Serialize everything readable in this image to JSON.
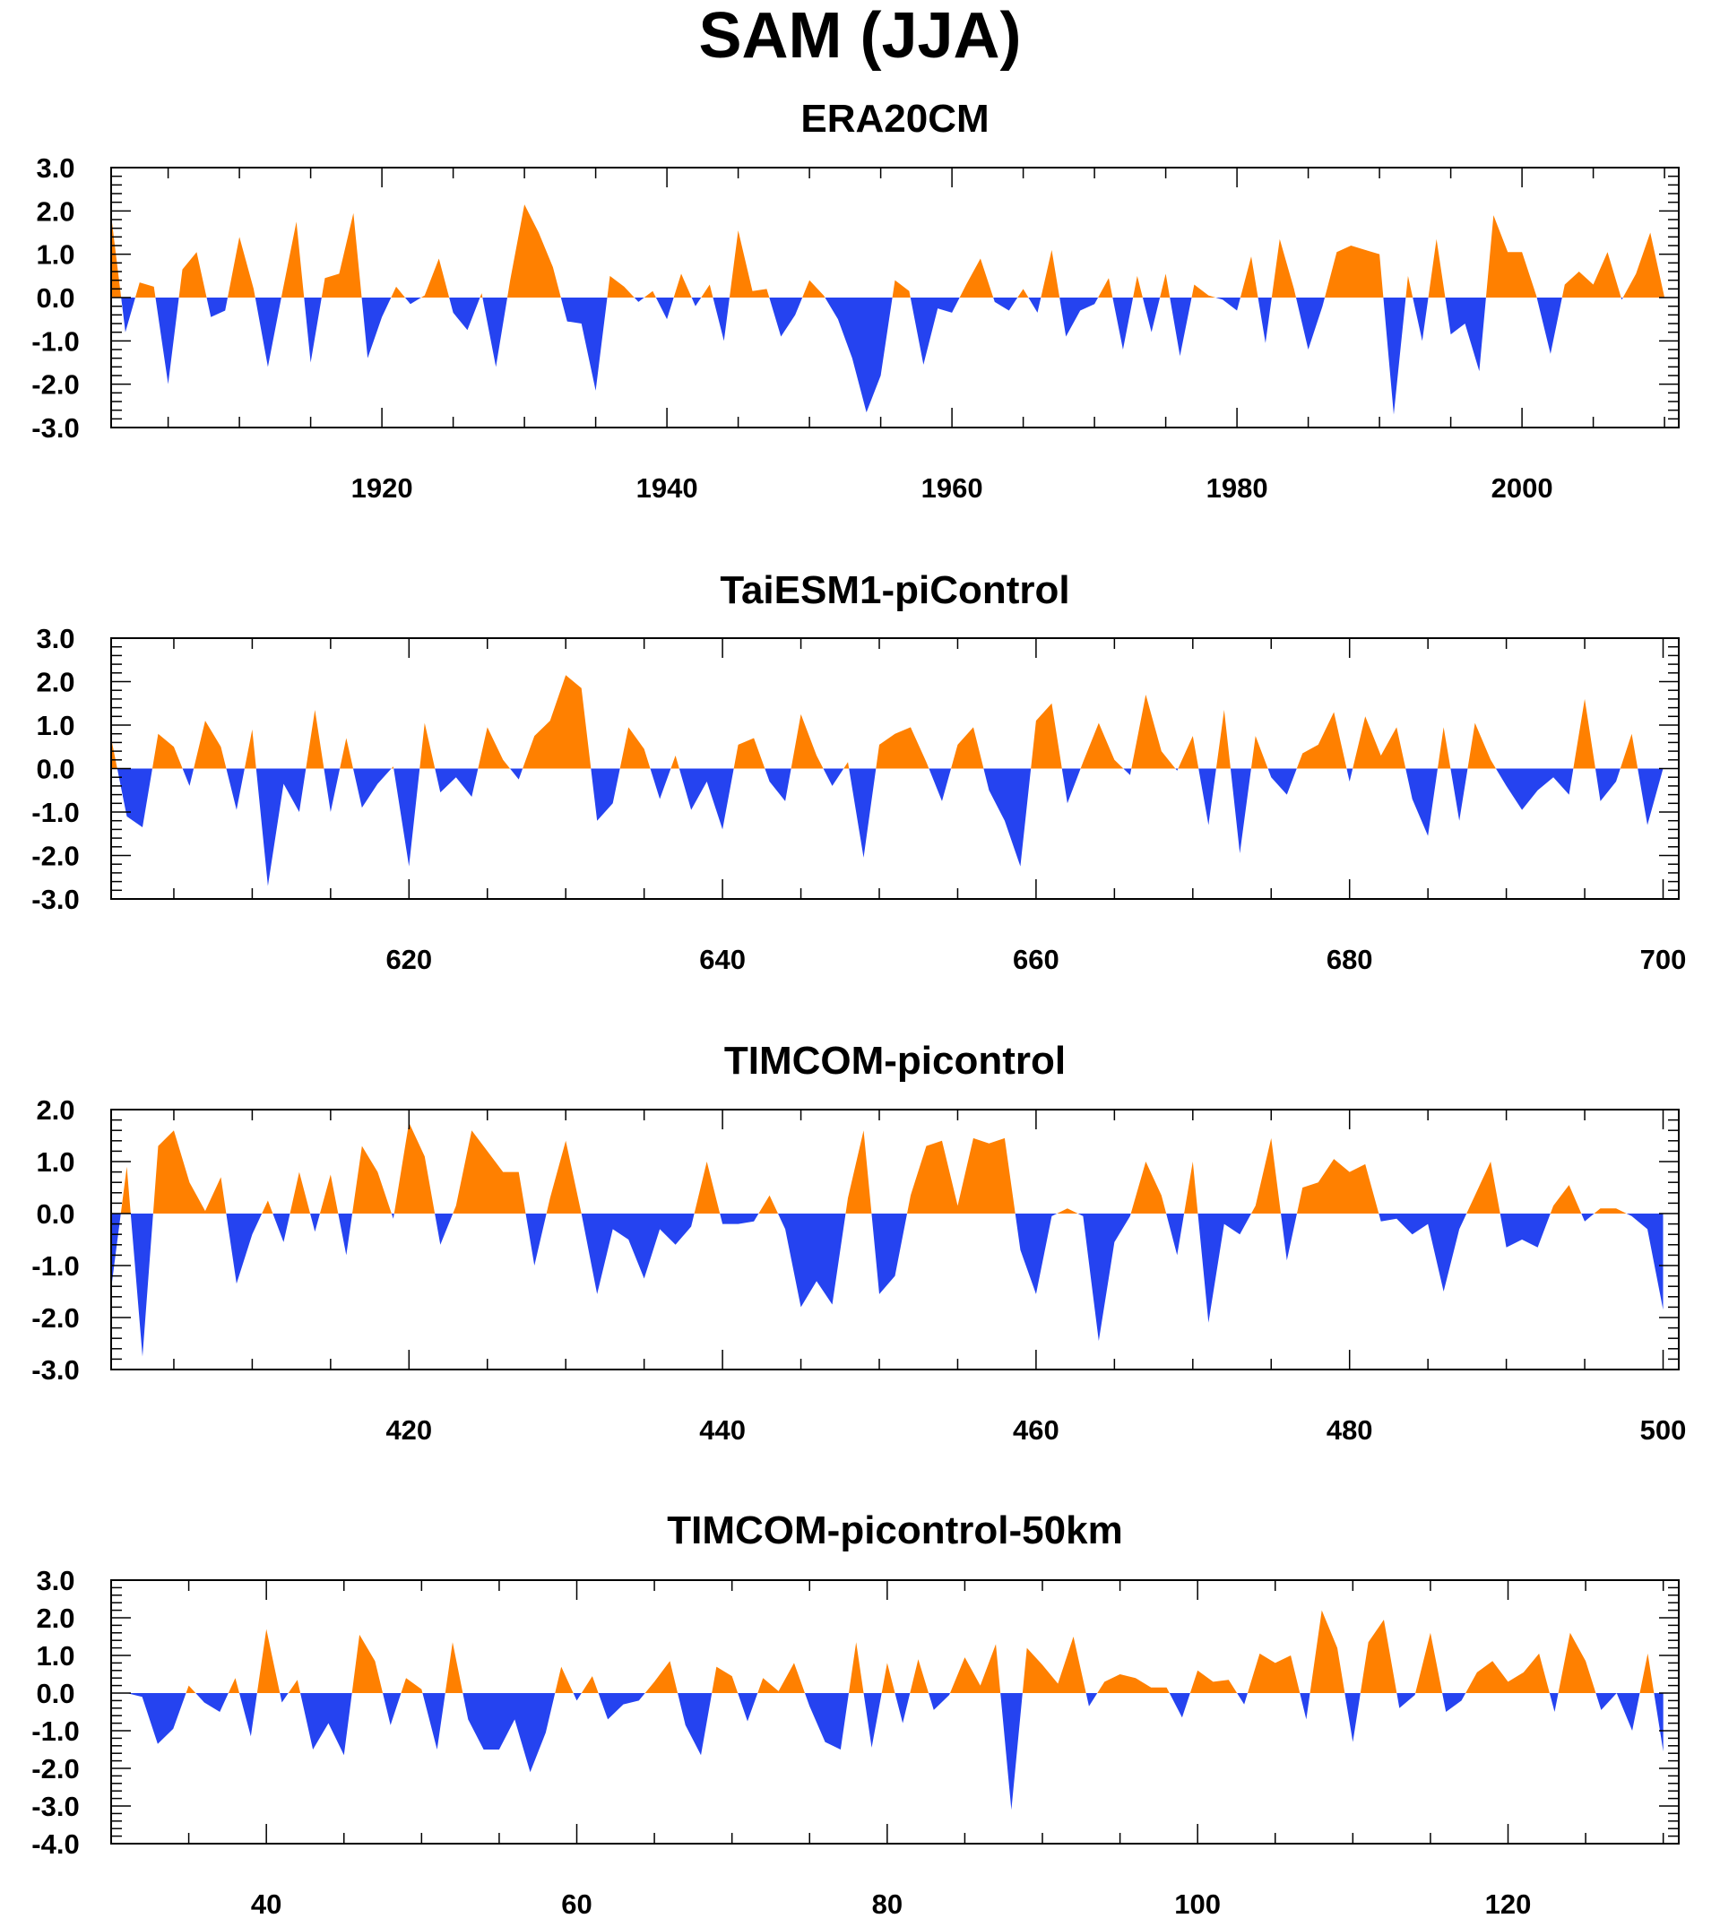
{
  "title": "SAM (JJA)",
  "colors": {
    "positive": "#FF8000",
    "negative": "#2543F0",
    "axis": "#000000"
  },
  "chart_data": [
    {
      "type": "area",
      "title": "ERA20CM",
      "xlim": [
        1901,
        2011
      ],
      "ylim": [
        -3.0,
        3.0
      ],
      "x_ticks": [
        1920,
        1940,
        1960,
        1980,
        2000
      ],
      "y_ticks": [
        "3.0",
        "2.0",
        "1.0",
        "0.0",
        "-1.0",
        "-2.0",
        "-3.0"
      ],
      "x": [
        1901,
        1902,
        1903,
        1904,
        1905,
        1906,
        1907,
        1908,
        1909,
        1910,
        1911,
        1912,
        1913,
        1914,
        1915,
        1916,
        1917,
        1918,
        1919,
        1920,
        1921,
        1922,
        1923,
        1924,
        1925,
        1926,
        1927,
        1928,
        1929,
        1930,
        1931,
        1932,
        1933,
        1934,
        1935,
        1936,
        1937,
        1938,
        1939,
        1940,
        1941,
        1942,
        1943,
        1944,
        1945,
        1946,
        1947,
        1948,
        1949,
        1950,
        1951,
        1952,
        1953,
        1954,
        1955,
        1956,
        1957,
        1958,
        1959,
        1960,
        1961,
        1962,
        1963,
        1964,
        1965,
        1966,
        1967,
        1968,
        1969,
        1970,
        1971,
        1972,
        1973,
        1974,
        1975,
        1976,
        1977,
        1978,
        1979,
        1980,
        1981,
        1982,
        1983,
        1984,
        1985,
        1986,
        1987,
        1988,
        1989,
        1990,
        1991,
        1992,
        1993,
        1994,
        1995,
        1996,
        1997,
        1998,
        1999,
        2000,
        2001,
        2002,
        2003,
        2004,
        2005,
        2006,
        2007,
        2008,
        2009,
        2010
      ],
      "values": [
        1.9,
        -0.8,
        0.35,
        0.25,
        -2.0,
        0.65,
        1.05,
        -0.45,
        -0.3,
        1.4,
        0.2,
        -1.6,
        0.1,
        1.75,
        -1.5,
        0.45,
        0.55,
        1.95,
        -1.4,
        -0.45,
        0.25,
        -0.15,
        0.05,
        0.9,
        -0.35,
        -0.75,
        0.1,
        -1.6,
        0.4,
        2.15,
        1.5,
        0.7,
        -0.55,
        -0.6,
        -2.15,
        0.5,
        0.25,
        -0.1,
        0.15,
        -0.5,
        0.55,
        -0.2,
        0.3,
        -1.0,
        1.55,
        0.15,
        0.2,
        -0.9,
        -0.4,
        0.4,
        0.05,
        -0.5,
        -1.4,
        -2.65,
        -1.8,
        0.4,
        0.15,
        -1.55,
        -0.25,
        -0.35,
        0.3,
        0.9,
        -0.1,
        -0.3,
        0.2,
        -0.35,
        1.1,
        -0.9,
        -0.3,
        -0.15,
        0.45,
        -1.2,
        0.5,
        -0.8,
        0.55,
        -1.35,
        0.3,
        0.05,
        -0.05,
        -0.3,
        0.95,
        -1.05,
        1.35,
        0.2,
        -1.2,
        -0.2,
        1.05,
        1.2,
        1.1,
        1.0,
        -2.7,
        0.5,
        -1.0,
        1.35,
        -0.85,
        -0.6,
        -1.7,
        1.9,
        1.05,
        1.05,
        0.05,
        -1.3,
        0.3,
        0.6,
        0.3,
        1.05,
        -0.05,
        0.55,
        1.5,
        0.0
      ]
    },
    {
      "type": "area",
      "title": "TaiESM1-piControl",
      "xlim": [
        601,
        701
      ],
      "ylim": [
        -3.0,
        3.0
      ],
      "x_ticks": [
        620,
        640,
        660,
        680,
        700
      ],
      "y_ticks": [
        "3.0",
        "2.0",
        "1.0",
        "0.0",
        "-1.0",
        "-2.0",
        "-3.0"
      ],
      "x": [
        601,
        602,
        603,
        604,
        605,
        606,
        607,
        608,
        609,
        610,
        611,
        612,
        613,
        614,
        615,
        616,
        617,
        618,
        619,
        620,
        621,
        622,
        623,
        624,
        625,
        626,
        627,
        628,
        629,
        630,
        631,
        632,
        633,
        634,
        635,
        636,
        637,
        638,
        639,
        640,
        641,
        642,
        643,
        644,
        645,
        646,
        647,
        648,
        649,
        650,
        651,
        652,
        653,
        654,
        655,
        656,
        657,
        658,
        659,
        660,
        661,
        662,
        663,
        664,
        665,
        666,
        667,
        668,
        669,
        670,
        671,
        672,
        673,
        674,
        675,
        676,
        677,
        678,
        679,
        680,
        681,
        682,
        683,
        684,
        685,
        686,
        687,
        688,
        689,
        690,
        691,
        692,
        693,
        694,
        695,
        696,
        697,
        698,
        699,
        700
      ],
      "values": [
        0.7,
        -1.1,
        -1.35,
        0.8,
        0.5,
        -0.4,
        1.1,
        0.5,
        -0.95,
        0.9,
        -2.7,
        -0.35,
        -1.0,
        1.35,
        -1.0,
        0.7,
        -0.9,
        -0.35,
        0.05,
        -2.25,
        1.05,
        -0.55,
        -0.2,
        -0.65,
        0.95,
        0.2,
        -0.25,
        0.75,
        1.1,
        2.15,
        1.85,
        -1.2,
        -0.8,
        0.95,
        0.45,
        -0.7,
        0.3,
        -0.95,
        -0.3,
        -1.4,
        0.55,
        0.7,
        -0.3,
        -0.75,
        1.25,
        0.3,
        -0.4,
        0.15,
        -2.05,
        0.55,
        0.8,
        0.95,
        0.15,
        -0.75,
        0.55,
        0.95,
        -0.5,
        -1.2,
        -2.25,
        1.1,
        1.5,
        -0.8,
        0.15,
        1.05,
        0.2,
        -0.15,
        1.7,
        0.4,
        -0.05,
        0.75,
        -1.3,
        1.35,
        -1.95,
        0.75,
        -0.2,
        -0.6,
        0.35,
        0.55,
        1.3,
        -0.3,
        1.2,
        0.3,
        0.95,
        -0.7,
        -1.55,
        0.95,
        -1.2,
        1.05,
        0.2,
        -0.4,
        -0.95,
        -0.5,
        -0.2,
        -0.6,
        1.6,
        -0.75,
        -0.3,
        0.8,
        -1.3,
        0.0
      ]
    },
    {
      "type": "area",
      "title": "TIMCOM-picontrol",
      "xlim": [
        401,
        501
      ],
      "ylim": [
        -3.0,
        2.0
      ],
      "x_ticks": [
        420,
        440,
        460,
        480,
        500
      ],
      "y_ticks": [
        "2.0",
        "1.0",
        "0.0",
        "-1.0",
        "-2.0",
        "-3.0"
      ],
      "x": [
        401,
        402,
        403,
        404,
        405,
        406,
        407,
        408,
        409,
        410,
        411,
        412,
        413,
        414,
        415,
        416,
        417,
        418,
        419,
        420,
        421,
        422,
        423,
        424,
        425,
        426,
        427,
        428,
        429,
        430,
        431,
        432,
        433,
        434,
        435,
        436,
        437,
        438,
        439,
        440,
        441,
        442,
        443,
        444,
        445,
        446,
        447,
        448,
        449,
        450,
        451,
        452,
        453,
        454,
        455,
        456,
        457,
        458,
        459,
        460,
        461,
        462,
        463,
        464,
        465,
        466,
        467,
        468,
        469,
        470,
        471,
        472,
        473,
        474,
        475,
        476,
        477,
        478,
        479,
        480,
        481,
        482,
        483,
        484,
        485,
        486,
        487,
        488,
        489,
        490,
        491,
        492,
        493,
        494,
        495,
        496,
        497,
        498,
        499,
        500
      ],
      "values": [
        -1.45,
        0.9,
        -2.75,
        1.3,
        1.6,
        0.6,
        0.05,
        0.7,
        -1.35,
        -0.4,
        0.25,
        -0.55,
        0.8,
        -0.35,
        0.75,
        -0.8,
        1.3,
        0.8,
        -0.1,
        1.75,
        1.1,
        -0.6,
        0.15,
        1.6,
        1.2,
        0.8,
        0.8,
        -1.0,
        0.3,
        1.4,
        0.0,
        -1.55,
        -0.3,
        -0.5,
        -1.25,
        -0.3,
        -0.6,
        -0.25,
        1.0,
        -0.2,
        -0.2,
        -0.15,
        0.35,
        -0.3,
        -1.8,
        -1.3,
        -1.75,
        0.3,
        1.6,
        -1.55,
        -1.2,
        0.35,
        1.3,
        1.4,
        0.15,
        1.45,
        1.35,
        1.45,
        -0.7,
        -1.55,
        -0.05,
        0.1,
        -0.05,
        -2.45,
        -0.55,
        -0.05,
        1.0,
        0.35,
        -0.8,
        1.0,
        -2.1,
        -0.2,
        -0.4,
        0.15,
        1.45,
        -0.9,
        0.5,
        0.6,
        1.05,
        0.8,
        0.95,
        -0.15,
        -0.1,
        -0.4,
        -0.2,
        -1.5,
        -0.3,
        0.35,
        1.0,
        -0.65,
        -0.5,
        -0.65,
        0.15,
        0.55,
        -0.15,
        0.1,
        0.1,
        -0.05,
        -0.3,
        -1.85
      ]
    },
    {
      "type": "area",
      "title": "TIMCOM-picontrol-50km",
      "xlim": [
        30,
        131
      ],
      "ylim": [
        -4.0,
        3.0
      ],
      "x_ticks": [
        40,
        60,
        80,
        100,
        120
      ],
      "y_ticks": [
        "3.0",
        "2.0",
        "1.0",
        "0.0",
        "-1.0",
        "-2.0",
        "-3.0",
        "-4.0"
      ],
      "x": [
        31,
        32,
        33,
        34,
        35,
        36,
        37,
        38,
        39,
        40,
        41,
        42,
        43,
        44,
        45,
        46,
        47,
        48,
        49,
        50,
        51,
        52,
        53,
        54,
        55,
        56,
        57,
        58,
        59,
        60,
        61,
        62,
        63,
        64,
        65,
        66,
        67,
        68,
        69,
        70,
        71,
        72,
        73,
        74,
        75,
        76,
        77,
        78,
        79,
        80,
        81,
        82,
        83,
        84,
        85,
        86,
        87,
        88,
        89,
        90,
        91,
        92,
        93,
        94,
        95,
        96,
        97,
        98,
        99,
        100,
        101,
        102,
        103,
        104,
        105,
        106,
        107,
        108,
        109,
        110,
        111,
        112,
        113,
        114,
        115,
        116,
        117,
        118,
        119,
        120,
        121,
        122,
        123,
        124,
        125,
        126,
        127,
        128,
        129,
        130
      ],
      "values": [
        0.0,
        -0.1,
        -1.35,
        -0.95,
        0.2,
        -0.25,
        -0.5,
        0.4,
        -1.15,
        1.7,
        -0.25,
        0.35,
        -1.5,
        -0.8,
        -1.65,
        1.55,
        0.85,
        -0.85,
        0.4,
        0.1,
        -1.5,
        1.35,
        -0.7,
        -1.5,
        -1.5,
        -0.7,
        -2.1,
        -1.05,
        0.7,
        -0.2,
        0.45,
        -0.7,
        -0.3,
        -0.2,
        0.3,
        0.85,
        -0.85,
        -1.65,
        0.7,
        0.45,
        -0.75,
        0.4,
        0.05,
        0.8,
        -0.35,
        -1.3,
        -1.5,
        1.35,
        -1.45,
        0.8,
        -0.8,
        0.9,
        -0.45,
        -0.05,
        0.95,
        0.2,
        1.3,
        -3.1,
        1.2,
        0.75,
        0.25,
        1.5,
        -0.35,
        0.3,
        0.5,
        0.4,
        0.15,
        0.15,
        -0.65,
        0.6,
        0.3,
        0.35,
        -0.3,
        1.05,
        0.8,
        1.0,
        -0.7,
        2.2,
        1.2,
        -1.3,
        1.35,
        1.95,
        -0.4,
        -0.05,
        1.6,
        -0.5,
        -0.2,
        0.55,
        0.85,
        0.3,
        0.55,
        1.05,
        -0.5,
        1.6,
        0.85,
        -0.45,
        0.0,
        -1.0,
        1.05,
        -1.55
      ]
    }
  ]
}
